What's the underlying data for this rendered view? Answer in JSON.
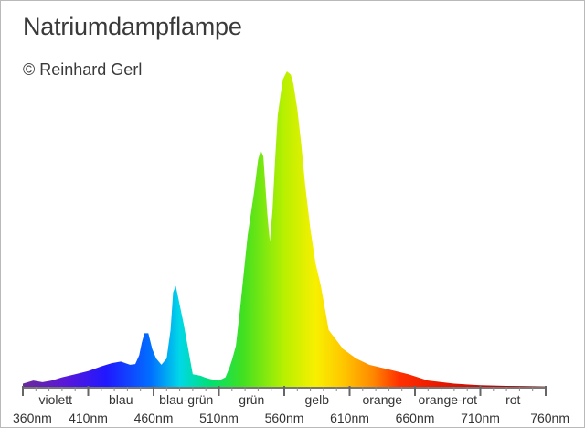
{
  "title": "Natriumdampflampe",
  "subtitle": "© Reinhard Gerl",
  "chart_data": {
    "type": "area",
    "title": "Natriumdampflampe",
    "subtitle": "© Reinhard Gerl",
    "x_unit": "nm",
    "xlim": [
      360,
      760
    ],
    "ylim": [
      0,
      1
    ],
    "y_axis_visible": false,
    "grid": false,
    "fill": "visible-spectrum gradient",
    "x_ticks": [
      360,
      410,
      460,
      510,
      560,
      610,
      660,
      710,
      760
    ],
    "x_tick_labels": [
      "360nm",
      "410nm",
      "460nm",
      "510nm",
      "560nm",
      "610nm",
      "660nm",
      "710nm",
      "760nm"
    ],
    "bands": [
      {
        "label": "violett",
        "from": 360,
        "to": 410
      },
      {
        "label": "blau",
        "from": 410,
        "to": 460
      },
      {
        "label": "blau-grün",
        "from": 460,
        "to": 510
      },
      {
        "label": "grün",
        "from": 510,
        "to": 560
      },
      {
        "label": "gelb",
        "from": 560,
        "to": 610
      },
      {
        "label": "orange",
        "from": 610,
        "to": 660
      },
      {
        "label": "orange-rot",
        "from": 660,
        "to": 710
      },
      {
        "label": "rot",
        "from": 710,
        "to": 760
      }
    ],
    "series": [
      {
        "x": [
          360,
          368,
          375,
          382,
          390,
          400,
          410,
          420,
          428,
          435,
          442,
          446,
          449,
          451,
          453,
          456,
          459,
          462,
          466,
          470,
          473,
          475,
          477,
          479,
          483,
          490,
          496,
          499,
          503,
          510,
          515,
          518,
          520,
          523,
          526,
          532,
          537,
          540,
          542,
          544,
          547,
          549,
          551,
          553,
          555,
          557,
          559,
          562,
          565,
          567,
          570,
          573,
          576,
          580,
          584,
          588,
          594,
          605,
          615,
          625,
          640,
          655,
          670,
          690,
          710,
          730,
          745,
          760
        ],
        "y": [
          0.01,
          0.02,
          0.015,
          0.02,
          0.03,
          0.04,
          0.05,
          0.065,
          0.075,
          0.08,
          0.07,
          0.072,
          0.1,
          0.14,
          0.17,
          0.17,
          0.12,
          0.09,
          0.07,
          0.09,
          0.18,
          0.3,
          0.32,
          0.28,
          0.2,
          0.04,
          0.035,
          0.03,
          0.025,
          0.02,
          0.03,
          0.06,
          0.085,
          0.13,
          0.24,
          0.48,
          0.62,
          0.72,
          0.75,
          0.73,
          0.55,
          0.46,
          0.56,
          0.72,
          0.86,
          0.92,
          0.975,
          1.0,
          0.99,
          0.96,
          0.88,
          0.77,
          0.64,
          0.5,
          0.39,
          0.32,
          0.18,
          0.12,
          0.09,
          0.07,
          0.055,
          0.04,
          0.02,
          0.01,
          0.005,
          0.003,
          0.002,
          0.001
        ]
      }
    ]
  }
}
